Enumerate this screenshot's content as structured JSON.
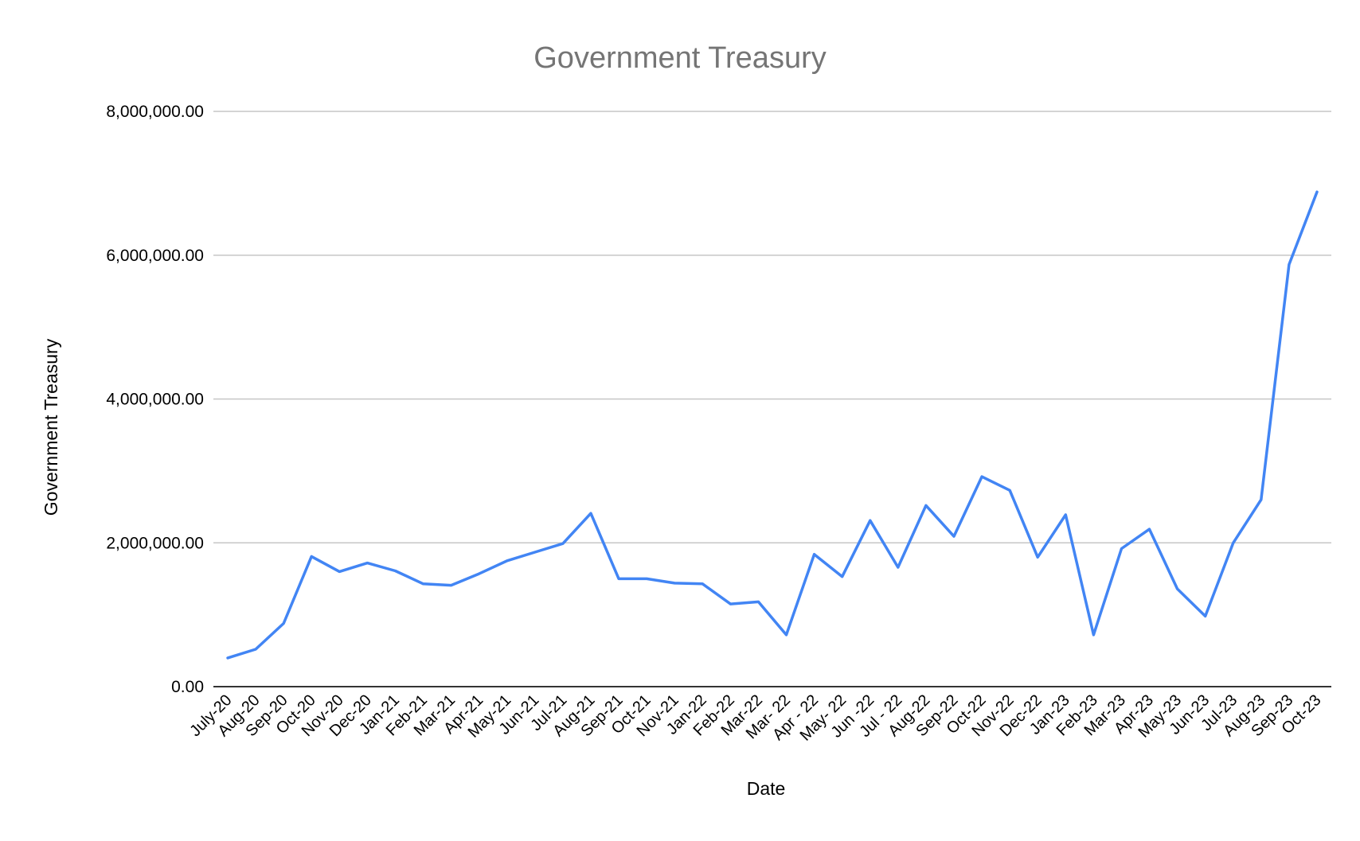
{
  "chart_data": {
    "type": "line",
    "title": "Government Treasury",
    "xlabel": "Date",
    "ylabel": "Government Treasury",
    "ylim": [
      0,
      8000000
    ],
    "y_ticks": [
      "0.00",
      "2,000,000.00",
      "4,000,000.00",
      "6,000,000.00",
      "8,000,000.00"
    ],
    "grid": true,
    "legend": "none",
    "categories": [
      "July-20",
      "Aug-20",
      "Sep-20",
      "Oct-20",
      "Nov-20",
      "Dec-20",
      "Jan-21",
      "Feb-21",
      "Mar-21",
      "Apr-21",
      "May-21",
      "Jun-21",
      "Jul-21",
      "Aug-21",
      "Sep-21",
      "Oct-21",
      "Nov-21",
      "Jan-22",
      "Feb-22",
      "Mar-22",
      "Mar- 22",
      "Apr - 22",
      "May- 22",
      "Jun -22",
      "Jul - 22",
      "Aug-22",
      "Sep-22",
      "Oct-22",
      "Nov-22",
      "Dec-22",
      "Jan-23",
      "Feb-23",
      "Mar-23",
      "Apr-23",
      "May-23",
      "Jun-23",
      "Jul-23",
      "Aug-23",
      "Sep-23",
      "Oct-23"
    ],
    "series": [
      {
        "values": [
          400000,
          520000,
          880000,
          1810000,
          1600000,
          1720000,
          1610000,
          1430000,
          1410000,
          1570000,
          1750000,
          1870000,
          1990000,
          2410000,
          1500000,
          1500000,
          1440000,
          1430000,
          1150000,
          1180000,
          720000,
          1840000,
          1530000,
          2310000,
          1660000,
          2520000,
          2090000,
          2920000,
          2730000,
          1800000,
          2390000,
          720000,
          1920000,
          2190000,
          1360000,
          980000,
          2000000,
          2600000,
          5870000,
          6880000
        ]
      }
    ],
    "colors": {
      "line": "#4285f4",
      "grid": "#c6c6c6",
      "axis": "#333333",
      "title": "#757575",
      "text": "#000000"
    }
  }
}
